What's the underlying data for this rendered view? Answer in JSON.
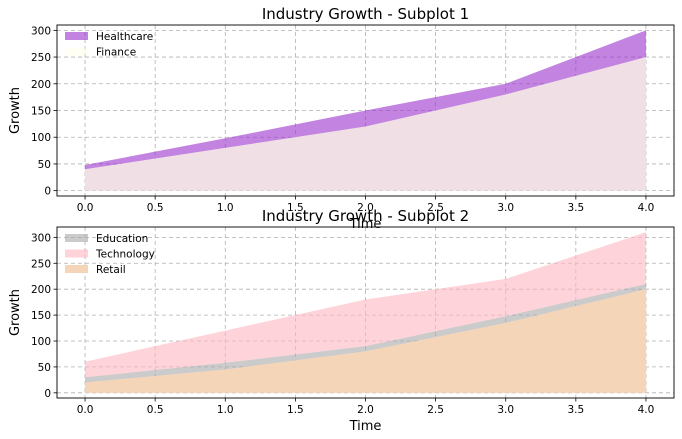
{
  "chart_data": [
    {
      "type": "area",
      "title": "Industry Growth - Subplot 1",
      "xlabel": "Time",
      "ylabel": "Growth",
      "x": [
        0,
        1,
        2,
        3,
        4
      ],
      "xticks": [
        "0.0",
        "0.5",
        "1.0",
        "1.5",
        "2.0",
        "2.5",
        "3.0",
        "3.5",
        "4.0"
      ],
      "yticks": [
        "0",
        "50",
        "100",
        "150",
        "200",
        "250",
        "300"
      ],
      "xlim": [
        -0.2,
        4.2
      ],
      "ylim": [
        -10,
        310
      ],
      "grid": true,
      "legend_position": "top-left",
      "series": [
        {
          "name": "Healthcare",
          "lower": [
            40,
            80,
            120,
            180,
            250
          ],
          "upper": [
            48,
            98,
            150,
            200,
            300
          ],
          "color": "#9932cc",
          "opacity": 0.6
        },
        {
          "name": "Finance",
          "lower": [
            0,
            0,
            0,
            0,
            0
          ],
          "upper": [
            40,
            80,
            120,
            180,
            250
          ],
          "color": "#ffffe0",
          "opacity": 0.4
        }
      ],
      "background_fill": {
        "lower": [
          0,
          0,
          0,
          0,
          0
        ],
        "upper": [
          40,
          80,
          120,
          180,
          250
        ],
        "color": "#e6cbe8"
      }
    },
    {
      "type": "area",
      "title": "Industry Growth - Subplot 2",
      "xlabel": "Time",
      "ylabel": "Growth",
      "x": [
        0,
        1,
        2,
        3,
        4
      ],
      "xticks": [
        "0.0",
        "0.5",
        "1.0",
        "1.5",
        "2.0",
        "2.5",
        "3.0",
        "3.5",
        "4.0"
      ],
      "yticks": [
        "0",
        "50",
        "100",
        "150",
        "200",
        "250",
        "300"
      ],
      "xlim": [
        -0.2,
        4.2
      ],
      "ylim": [
        -10,
        320
      ],
      "grid": true,
      "legend_position": "top-left",
      "series": [
        {
          "name": "Retail",
          "lower": [
            0,
            0,
            0,
            0,
            0
          ],
          "upper": [
            20,
            45,
            80,
            135,
            200
          ],
          "color": "#f5d5b8",
          "opacity": 1.0
        },
        {
          "name": "Education",
          "lower": [
            20,
            45,
            80,
            135,
            200
          ],
          "upper": [
            30,
            58,
            90,
            148,
            210
          ],
          "color": "#a9a9a9",
          "opacity": 0.6
        },
        {
          "name": "Technology",
          "lower": [
            30,
            58,
            90,
            148,
            210
          ],
          "upper": [
            60,
            120,
            180,
            220,
            310
          ],
          "color": "#ffb6c1",
          "opacity": 0.6
        }
      ],
      "legend_order": [
        "Education",
        "Technology",
        "Retail"
      ]
    }
  ]
}
